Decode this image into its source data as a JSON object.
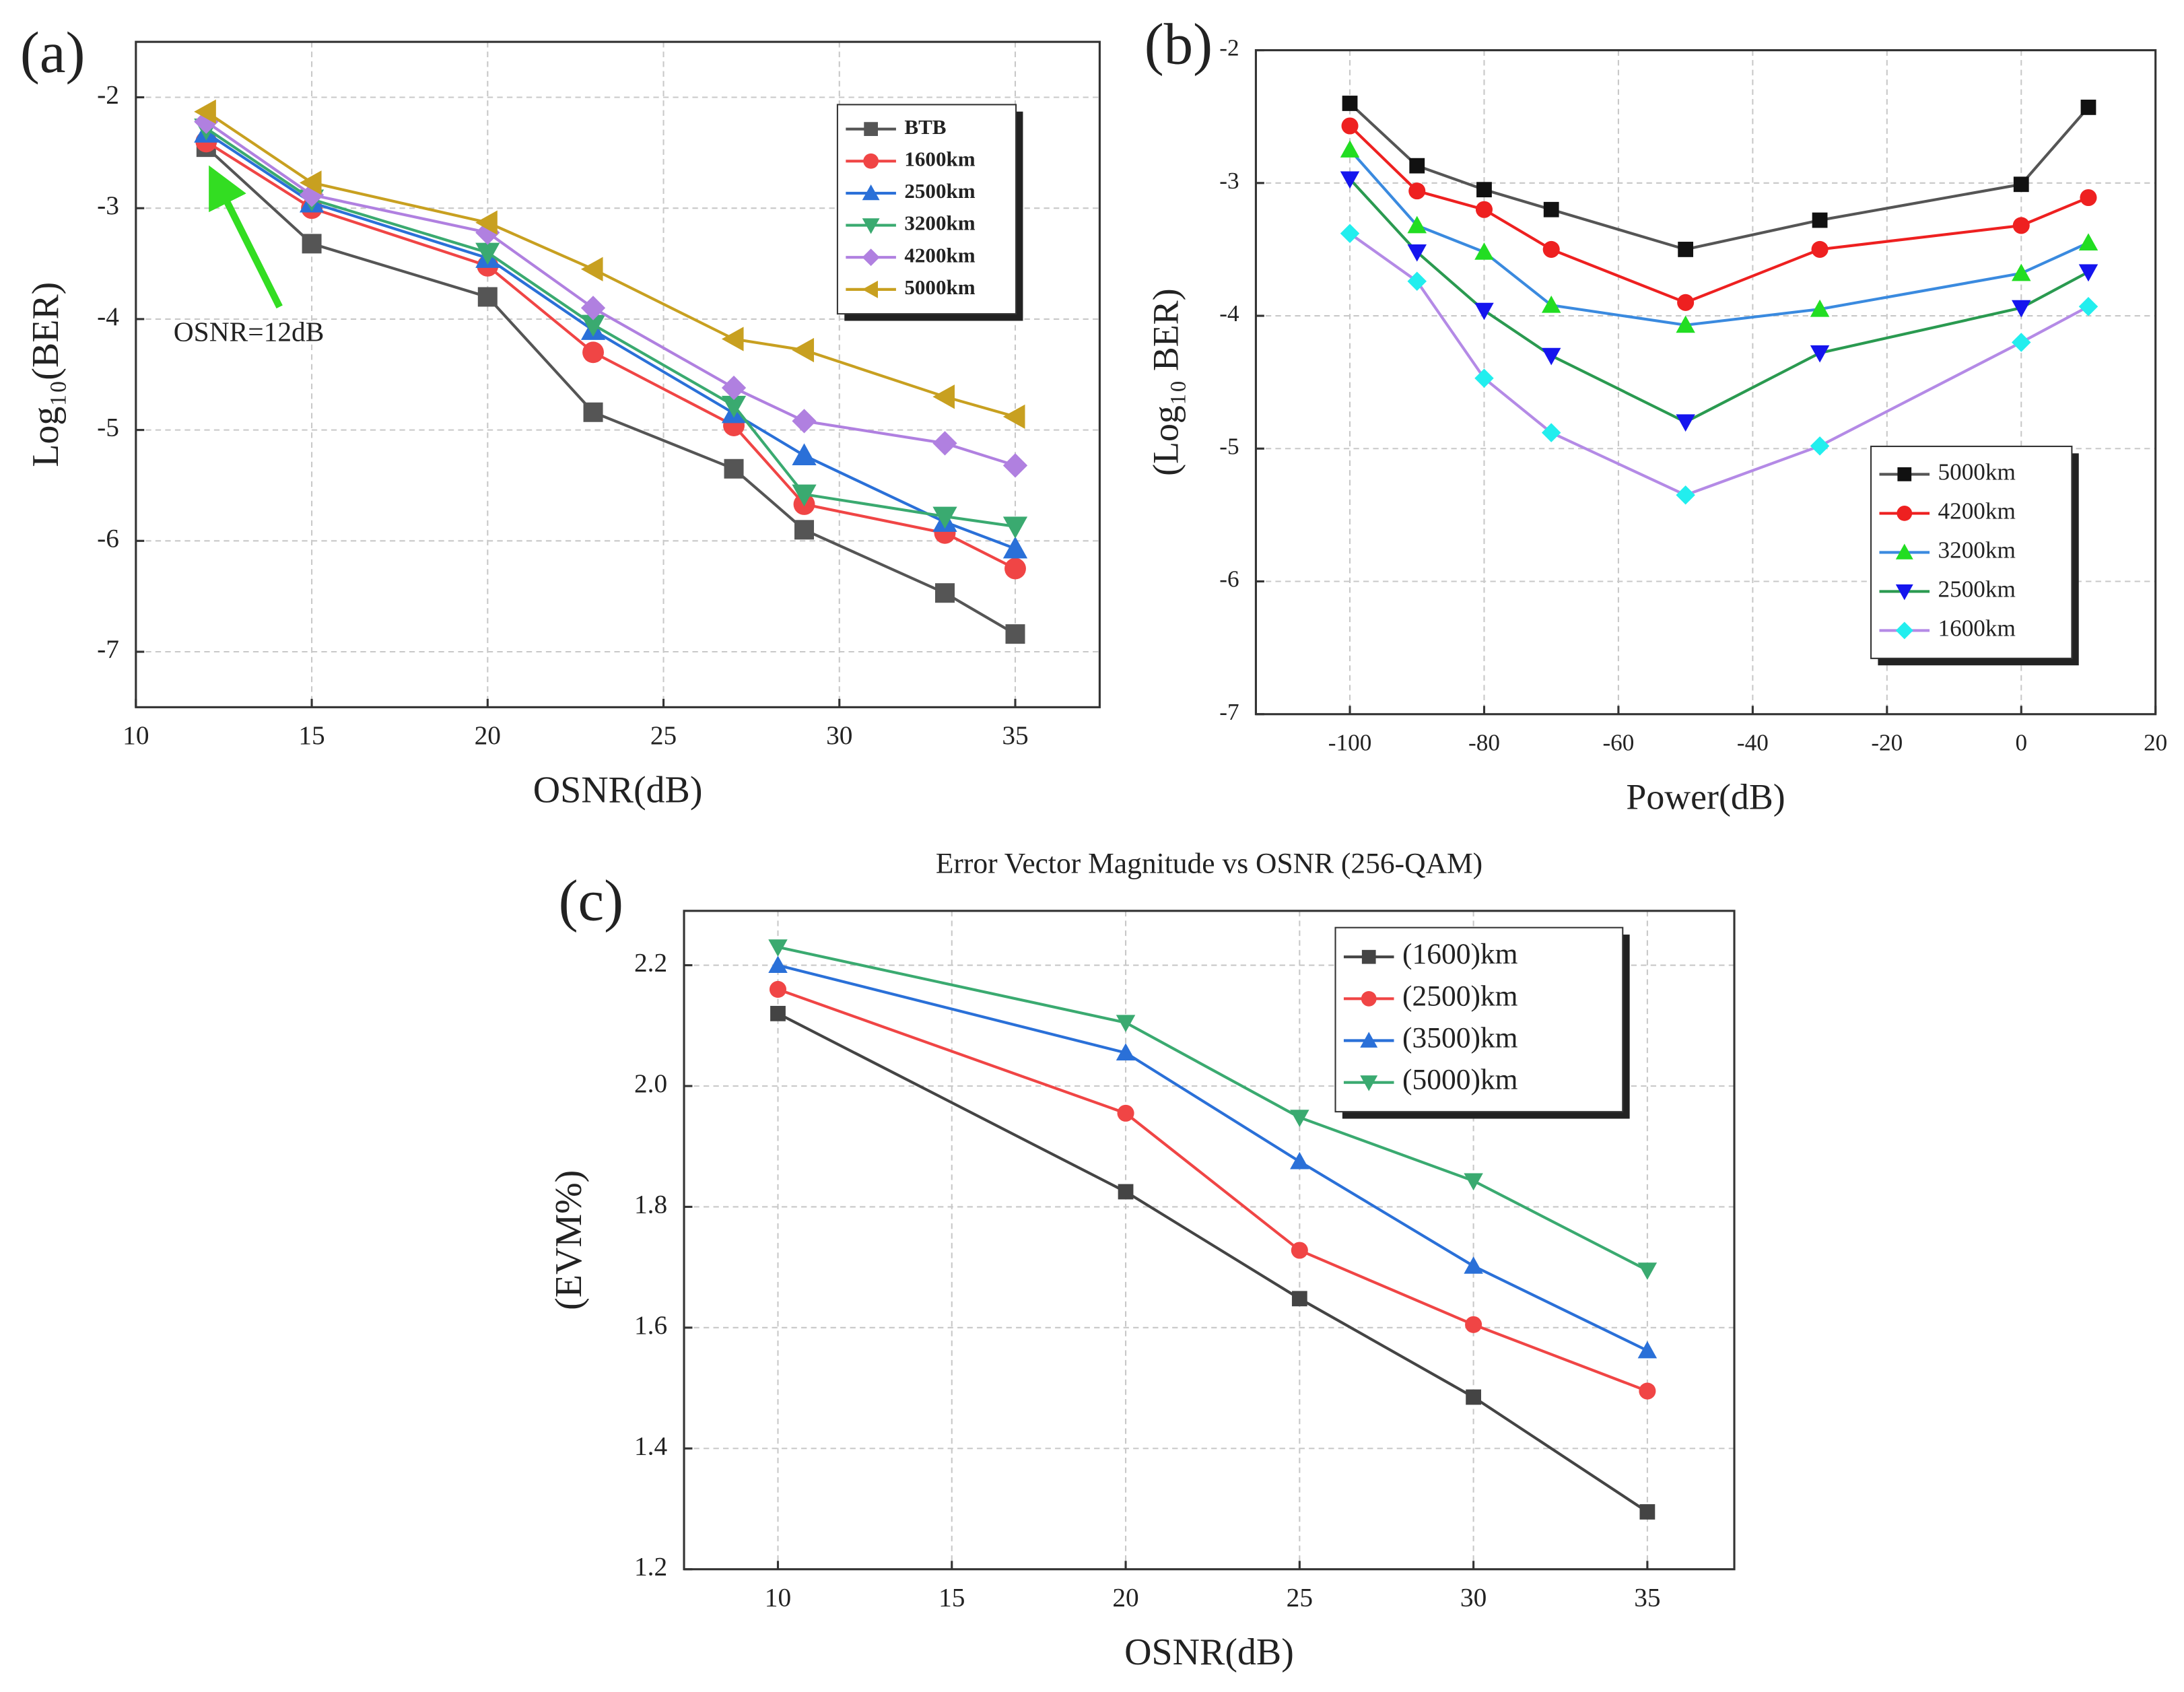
{
  "chart_data": [
    {
      "type": "line",
      "panel_label": "(a)",
      "xlabel": "OSNR(dB)",
      "ylabel": "Log₁₀(BER)",
      "x": [
        12,
        15,
        20,
        23,
        27,
        29,
        33,
        35
      ],
      "xlim": [
        10,
        37.4
      ],
      "xticks": [
        10,
        15,
        20,
        25,
        30,
        35
      ],
      "ylim": [
        -7.5,
        -1.5
      ],
      "yticks": [
        -7,
        -6,
        -5,
        -4,
        -3,
        -2
      ],
      "grid": true,
      "legend": "upper right",
      "legend_bold": true,
      "annotations": [
        "OSNR=12dB"
      ],
      "annotation_color": "#33dd22",
      "series": [
        {
          "name": "BTB",
          "color": "#555555",
          "marker": "square",
          "values": [
            -2.45,
            -3.32,
            -3.8,
            -4.84,
            -5.35,
            -5.9,
            -6.47,
            -6.84
          ]
        },
        {
          "name": "1600km",
          "color": "#f04545",
          "marker": "circle",
          "values": [
            -2.4,
            -3.0,
            -3.52,
            -4.3,
            -4.96,
            -5.67,
            -5.93,
            -6.25
          ]
        },
        {
          "name": "2500km",
          "color": "#2a70d8",
          "marker": "triangle-up",
          "values": [
            -2.32,
            -2.95,
            -3.45,
            -4.1,
            -4.85,
            -5.23,
            -5.83,
            -6.07
          ]
        },
        {
          "name": "3200km",
          "color": "#3aaa70",
          "marker": "triangle-down",
          "values": [
            -2.28,
            -2.92,
            -3.4,
            -4.05,
            -4.78,
            -5.58,
            -5.78,
            -5.87
          ]
        },
        {
          "name": "4200km",
          "color": "#b080e0",
          "marker": "diamond",
          "values": [
            -2.22,
            -2.88,
            -3.22,
            -3.9,
            -4.62,
            -4.92,
            -5.12,
            -5.32
          ]
        },
        {
          "name": "5000km",
          "color": "#c8a020",
          "marker": "triangle-left",
          "values": [
            -2.13,
            -2.77,
            -3.13,
            -3.55,
            -4.18,
            -4.28,
            -4.7,
            -4.88
          ]
        }
      ]
    },
    {
      "type": "line",
      "panel_label": "(b)",
      "xlabel": "Power(dB)",
      "ylabel": "(Log₁₀ BER)",
      "x": [
        -100,
        -90,
        -80,
        -70,
        -50,
        -30,
        0,
        10
      ],
      "xlim": [
        -114,
        20
      ],
      "xticks": [
        -100,
        -80,
        -60,
        -40,
        -20,
        0,
        20
      ],
      "ylim": [
        -7,
        -2
      ],
      "yticks": [
        -7,
        -6,
        -5,
        -4,
        -3,
        -2
      ],
      "grid": true,
      "legend": "lower right",
      "legend_bold": false,
      "series": [
        {
          "name": "5000km",
          "color": "#111111",
          "line_color": "#555555",
          "marker": "square",
          "values": [
            -2.4,
            -2.87,
            -3.05,
            -3.2,
            -3.5,
            -3.28,
            -3.01,
            -2.43
          ]
        },
        {
          "name": "4200km",
          "color": "#ee2020",
          "line_color": "#ee2020",
          "marker": "circle",
          "values": [
            -2.57,
            -3.06,
            -3.2,
            -3.5,
            -3.9,
            -3.5,
            -3.32,
            -3.11
          ]
        },
        {
          "name": "3200km",
          "color": "#22dd22",
          "line_color": "#3a8adf",
          "marker": "triangle-up",
          "values": [
            -2.75,
            -3.32,
            -3.52,
            -3.92,
            -4.07,
            -3.95,
            -3.68,
            -3.45
          ]
        },
        {
          "name": "2500km",
          "color": "#1515ee",
          "line_color": "#2a9a50",
          "marker": "triangle-down",
          "values": [
            -2.97,
            -3.52,
            -3.96,
            -4.3,
            -4.8,
            -4.28,
            -3.94,
            -3.67
          ]
        },
        {
          "name": "1600km",
          "color": "#22eeee",
          "line_color": "#b48ae6",
          "marker": "diamond",
          "values": [
            -3.38,
            -3.74,
            -4.47,
            -4.88,
            -5.35,
            -4.98,
            -4.2,
            -3.93
          ]
        }
      ]
    },
    {
      "type": "line",
      "panel_label": "(c)",
      "title": "Error Vector Magnitude vs OSNR (256-QAM)",
      "xlabel": "OSNR(dB)",
      "ylabel": "(EVM%)",
      "x": [
        10,
        20,
        25,
        30,
        35
      ],
      "xlim": [
        7.3,
        37.5
      ],
      "xticks": [
        10,
        15,
        20,
        25,
        30,
        35
      ],
      "ylim": [
        1.2,
        2.29
      ],
      "yticks": [
        1.2,
        1.4,
        1.6,
        1.8,
        {
          "value": 2,
          "label": "2.0"
        },
        2.2
      ],
      "grid": true,
      "legend": "upper right",
      "legend_bold": false,
      "series": [
        {
          "name": "(1600)km",
          "color": "#444444",
          "marker": "square",
          "values": [
            2.12,
            1.825,
            1.648,
            1.485,
            1.295
          ]
        },
        {
          "name": "(2500)km",
          "color": "#f04545",
          "marker": "circle",
          "values": [
            2.16,
            1.955,
            1.728,
            1.605,
            1.495
          ]
        },
        {
          "name": "(3500)km",
          "color": "#2a70d8",
          "marker": "triangle-up",
          "values": [
            2.2,
            2.055,
            1.875,
            1.702,
            1.562
          ]
        },
        {
          "name": "(5000)km",
          "color": "#3aaa70",
          "marker": "triangle-down",
          "values": [
            2.23,
            2.105,
            1.948,
            1.843,
            1.695
          ]
        }
      ]
    }
  ]
}
